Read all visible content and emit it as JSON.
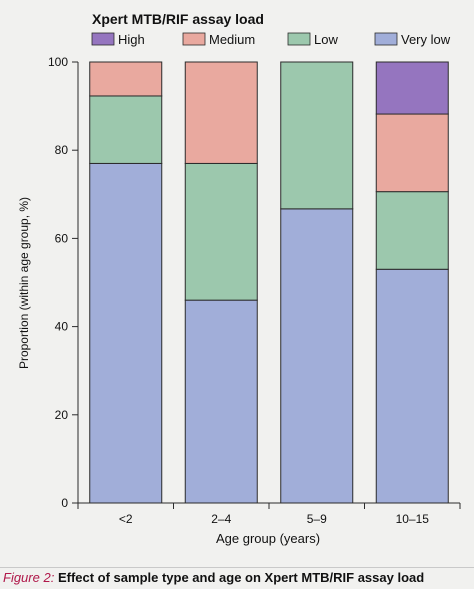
{
  "chart_data": {
    "type": "bar",
    "stacked": true,
    "legend_title": "Xpert MTB/RIF assay load",
    "legend_position": "top",
    "categories": [
      "<2",
      "2–4",
      "5–9",
      "10–15"
    ],
    "series": [
      {
        "name": "Very low",
        "color": "#a1aed9",
        "values": [
          77,
          46,
          66.7,
          53
        ]
      },
      {
        "name": "Low",
        "color": "#9cc8ad",
        "values": [
          15.3,
          31,
          33.3,
          17.6
        ]
      },
      {
        "name": "Medium",
        "color": "#e9a99f",
        "values": [
          7.7,
          23,
          0,
          17.6
        ]
      },
      {
        "name": "High",
        "color": "#9575bf",
        "values": [
          0,
          0,
          0,
          11.8
        ]
      }
    ],
    "legend_order": [
      "High",
      "Medium",
      "Low",
      "Very low"
    ],
    "xlabel": "Age group (years)",
    "ylabel": "Proportion (within age group, %)",
    "ylim": [
      0,
      100
    ],
    "yticks": [
      0,
      20,
      40,
      60,
      80,
      100
    ],
    "grid": false
  },
  "caption": {
    "label": "Figure 2:",
    "text": "Effect of sample type and age on Xpert MTB/RIF assay load"
  }
}
